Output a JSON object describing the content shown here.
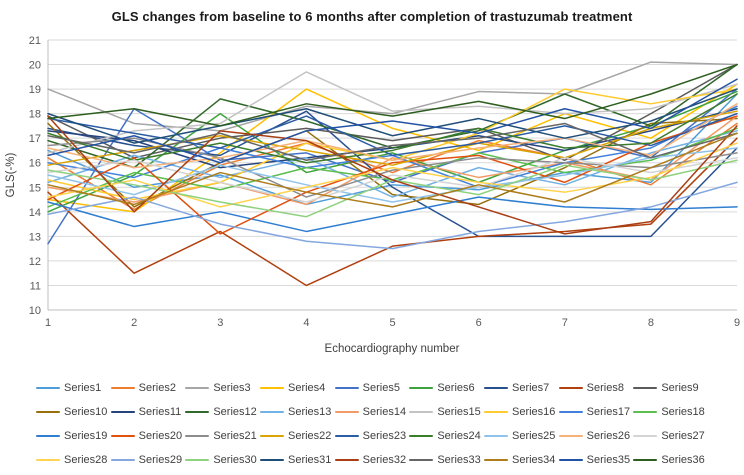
{
  "chart_data": {
    "type": "line",
    "title": "GLS changes from baseline to 6 months after completion of trastuzumab treatment",
    "xlabel": "Echocardiography number",
    "ylabel": "GLS(-%)",
    "x": [
      1,
      2,
      3,
      4,
      5,
      6,
      7,
      8,
      9
    ],
    "ylim": [
      10,
      21
    ],
    "yticks": [
      10,
      11,
      12,
      13,
      14,
      15,
      16,
      17,
      18,
      19,
      20,
      21
    ],
    "grid": "horizontal-only",
    "gridline_color": "#D9D9D9",
    "axis_line_color": "#BFBFBF",
    "legend_position": "bottom",
    "legend_columns": 9,
    "series": [
      {
        "name": "Series1",
        "color": "#4E9CD8",
        "values": [
          16.5,
          15.0,
          15.5,
          14.3,
          15.1,
          14.9,
          15.6,
          15.2,
          18.8
        ]
      },
      {
        "name": "Series2",
        "color": "#ED7D31",
        "values": [
          16.2,
          14.1,
          15.9,
          16.8,
          15.6,
          16.9,
          16.2,
          15.1,
          17.6
        ]
      },
      {
        "name": "Series3",
        "color": "#A6A6A6",
        "values": [
          19.0,
          17.6,
          17.3,
          18.3,
          18.0,
          18.9,
          18.8,
          20.1,
          20.0
        ]
      },
      {
        "name": "Series4",
        "color": "#FFC000",
        "values": [
          14.5,
          14.0,
          16.4,
          19.0,
          17.4,
          16.5,
          18.0,
          17.0,
          19.2
        ]
      },
      {
        "name": "Series5",
        "color": "#4472C4",
        "values": [
          12.7,
          18.2,
          16.1,
          16.4,
          15.2,
          16.4,
          17.0,
          16.2,
          19.0
        ]
      },
      {
        "name": "Series6",
        "color": "#3FA33C",
        "values": [
          14.0,
          15.5,
          18.0,
          15.6,
          16.4,
          15.2,
          16.5,
          17.5,
          18.9
        ]
      },
      {
        "name": "Series7",
        "color": "#27508F",
        "values": [
          17.4,
          16.7,
          16.3,
          18.1,
          15.0,
          13.0,
          13.0,
          13.0,
          16.6
        ]
      },
      {
        "name": "Series8",
        "color": "#B0400E",
        "values": [
          14.8,
          11.5,
          13.2,
          11.0,
          12.6,
          13.0,
          13.2,
          13.5,
          17.0
        ]
      },
      {
        "name": "Series9",
        "color": "#5B5B5B",
        "values": [
          17.9,
          16.2,
          17.0,
          17.4,
          16.9,
          17.4,
          16.1,
          18.0,
          20.0
        ]
      },
      {
        "name": "Series10",
        "color": "#97700C",
        "values": [
          17.6,
          14.2,
          16.0,
          17.3,
          14.7,
          14.3,
          15.8,
          17.6,
          17.8
        ]
      },
      {
        "name": "Series11",
        "color": "#26437C",
        "values": [
          17.3,
          16.9,
          15.8,
          16.2,
          16.6,
          17.1,
          16.5,
          17.3,
          18.2
        ]
      },
      {
        "name": "Series12",
        "color": "#31682B",
        "values": [
          16.9,
          15.8,
          18.6,
          17.7,
          16.6,
          17.3,
          18.8,
          17.5,
          20.0
        ]
      },
      {
        "name": "Series13",
        "color": "#72B1E1",
        "values": [
          15.2,
          16.3,
          15.4,
          16.2,
          14.6,
          15.8,
          15.1,
          16.4,
          17.3
        ]
      },
      {
        "name": "Series14",
        "color": "#F29B66",
        "values": [
          15.0,
          14.4,
          15.2,
          14.3,
          16.2,
          15.4,
          16.0,
          15.3,
          17.9
        ]
      },
      {
        "name": "Series15",
        "color": "#C3C3C3",
        "values": [
          16.4,
          17.3,
          17.6,
          19.7,
          18.1,
          18.3,
          18.0,
          18.2,
          19.2
        ]
      },
      {
        "name": "Series16",
        "color": "#FFCB2F",
        "values": [
          15.3,
          14.5,
          15.2,
          16.8,
          16.1,
          17.2,
          19.0,
          18.4,
          19.0
        ]
      },
      {
        "name": "Series17",
        "color": "#4380DB",
        "values": [
          16.0,
          15.4,
          16.6,
          15.8,
          16.3,
          15.0,
          16.0,
          16.6,
          18.3
        ]
      },
      {
        "name": "Series18",
        "color": "#5BBE4E",
        "values": [
          14.2,
          15.6,
          14.9,
          15.8,
          15.3,
          16.4,
          15.6,
          16.1,
          17.4
        ]
      },
      {
        "name": "Series19",
        "color": "#2F7ED1",
        "values": [
          14.4,
          13.4,
          14.0,
          13.2,
          13.9,
          14.6,
          14.2,
          14.1,
          14.2
        ]
      },
      {
        "name": "Series20",
        "color": "#E1500E",
        "values": [
          14.5,
          16.2,
          13.1,
          14.8,
          16.0,
          16.3,
          15.2,
          16.8,
          17.9
        ]
      },
      {
        "name": "Series21",
        "color": "#8C8C8C",
        "values": [
          16.7,
          17.0,
          16.2,
          14.6,
          15.7,
          16.2,
          16.0,
          15.8,
          16.4
        ]
      },
      {
        "name": "Series22",
        "color": "#D9A400",
        "values": [
          15.9,
          16.5,
          17.1,
          16.5,
          15.9,
          16.8,
          16.2,
          17.4,
          18.1
        ]
      },
      {
        "name": "Series23",
        "color": "#2B5DA5",
        "values": [
          17.8,
          17.2,
          16.6,
          17.9,
          16.3,
          16.8,
          17.5,
          16.7,
          18.0
        ]
      },
      {
        "name": "Series24",
        "color": "#3C7D2C",
        "values": [
          17.2,
          16.1,
          16.8,
          16.0,
          16.5,
          17.4,
          16.6,
          16.8,
          18.8
        ]
      },
      {
        "name": "Series25",
        "color": "#8FC3EB",
        "values": [
          15.5,
          14.7,
          15.9,
          15.1,
          14.4,
          15.0,
          15.5,
          16.2,
          16.6
        ]
      },
      {
        "name": "Series26",
        "color": "#F6B179",
        "values": [
          16.6,
          15.8,
          16.2,
          16.9,
          16.1,
          16.6,
          17.0,
          16.3,
          18.4
        ]
      },
      {
        "name": "Series27",
        "color": "#D4D4D4",
        "values": [
          15.6,
          16.1,
          15.2,
          14.4,
          15.5,
          15.0,
          16.2,
          15.6,
          16.2
        ]
      },
      {
        "name": "Series28",
        "color": "#FFD34D",
        "values": [
          14.6,
          15.3,
          14.2,
          15.0,
          15.8,
          15.2,
          14.8,
          15.4,
          16.8
        ]
      },
      {
        "name": "Series29",
        "color": "#84A7E0",
        "values": [
          13.9,
          14.6,
          13.5,
          12.8,
          12.5,
          13.2,
          13.6,
          14.2,
          15.2
        ]
      },
      {
        "name": "Series30",
        "color": "#8FD17E",
        "values": [
          15.7,
          15.1,
          14.4,
          13.8,
          15.3,
          14.7,
          15.9,
          15.3,
          16.1
        ]
      },
      {
        "name": "Series31",
        "color": "#1F4E79",
        "values": [
          18.0,
          16.8,
          17.5,
          18.2,
          17.1,
          17.8,
          17.0,
          17.7,
          19.0
        ]
      },
      {
        "name": "Series32",
        "color": "#A93E14",
        "values": [
          17.9,
          14.0,
          17.3,
          16.9,
          15.3,
          14.2,
          13.1,
          13.6,
          17.5
        ]
      },
      {
        "name": "Series33",
        "color": "#666666",
        "values": [
          17.1,
          16.4,
          17.2,
          16.1,
          16.7,
          17.0,
          17.6,
          16.2,
          17.2
        ]
      },
      {
        "name": "Series34",
        "color": "#AD7D1C",
        "values": [
          15.1,
          14.3,
          15.6,
          14.8,
          14.2,
          15.1,
          14.4,
          15.8,
          17.2
        ]
      },
      {
        "name": "Series35",
        "color": "#2353A4",
        "values": [
          16.3,
          17.1,
          16.0,
          17.3,
          17.7,
          17.2,
          18.2,
          17.4,
          19.4
        ]
      },
      {
        "name": "Series36",
        "color": "#2E5E1F",
        "values": [
          17.8,
          18.2,
          17.5,
          18.4,
          17.9,
          18.5,
          17.8,
          18.8,
          20.0
        ]
      }
    ]
  }
}
